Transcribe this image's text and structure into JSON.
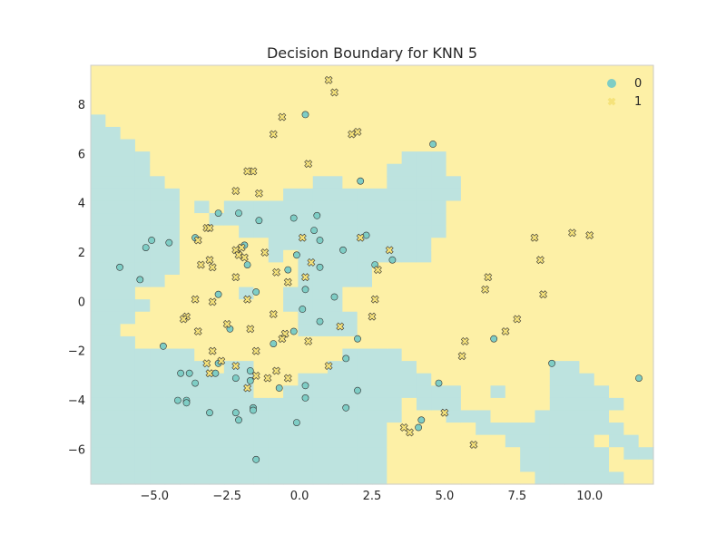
{
  "chart_data": {
    "type": "scatter",
    "title": "Decision Boundary for KNN 5",
    "xlabel": "",
    "ylabel": "",
    "xlim": [
      -7.2,
      12.2
    ],
    "ylim": [
      -7.4,
      9.6
    ],
    "xticks": [
      -5.0,
      -2.5,
      0.0,
      2.5,
      5.0,
      7.5,
      10.0
    ],
    "xtick_labels": [
      "−5.0",
      "−2.5",
      "0.0",
      "2.5",
      "5.0",
      "7.5",
      "10.0"
    ],
    "yticks": [
      -6,
      -4,
      -2,
      0,
      2,
      4,
      6,
      8
    ],
    "ytick_labels": [
      "−6",
      "−4",
      "−2",
      "0",
      "2",
      "4",
      "6",
      "8"
    ],
    "grid": false,
    "legend_position": "top-right",
    "colors": {
      "class0_region": "#bde3df",
      "class1_region": "#fdf0a6",
      "class0_marker": "#7ecdc5",
      "class1_marker": "#f5e27a",
      "marker_edge": "#333333"
    },
    "series": [
      {
        "name": "0",
        "marker": "circle",
        "points": [
          [
            0.2,
            7.6
          ],
          [
            4.6,
            6.4
          ],
          [
            2.1,
            4.9
          ],
          [
            -2.8,
            3.6
          ],
          [
            -2.1,
            3.6
          ],
          [
            -1.4,
            3.3
          ],
          [
            -0.2,
            3.4
          ],
          [
            0.6,
            3.5
          ],
          [
            0.5,
            2.9
          ],
          [
            -3.6,
            2.6
          ],
          [
            -5.1,
            2.5
          ],
          [
            -4.5,
            2.4
          ],
          [
            -5.3,
            2.2
          ],
          [
            -1.9,
            2.3
          ],
          [
            2.3,
            2.7
          ],
          [
            1.5,
            2.1
          ],
          [
            0.7,
            2.5
          ],
          [
            -6.2,
            1.4
          ],
          [
            -1.8,
            1.5
          ],
          [
            -0.4,
            1.3
          ],
          [
            0.7,
            1.4
          ],
          [
            -0.1,
            1.9
          ],
          [
            2.6,
            1.5
          ],
          [
            3.2,
            1.7
          ],
          [
            -5.5,
            0.9
          ],
          [
            -2.8,
            0.3
          ],
          [
            -1.5,
            0.4
          ],
          [
            0.2,
            0.5
          ],
          [
            1.2,
            0.2
          ],
          [
            0.1,
            -0.3
          ],
          [
            0.7,
            -0.8
          ],
          [
            -2.4,
            -1.1
          ],
          [
            -0.2,
            -1.2
          ],
          [
            -4.7,
            -1.8
          ],
          [
            -0.9,
            -1.7
          ],
          [
            2.0,
            -1.5
          ],
          [
            6.7,
            -1.5
          ],
          [
            1.6,
            -2.3
          ],
          [
            8.7,
            -2.5
          ],
          [
            11.7,
            -3.1
          ],
          [
            -4.1,
            -2.9
          ],
          [
            -3.6,
            -3.3
          ],
          [
            -3.8,
            -2.9
          ],
          [
            -2.9,
            -2.9
          ],
          [
            -2.8,
            -2.5
          ],
          [
            -2.2,
            -3.1
          ],
          [
            -1.7,
            -2.8
          ],
          [
            -1.7,
            -3.2
          ],
          [
            -0.7,
            -3.5
          ],
          [
            0.2,
            -3.4
          ],
          [
            2.0,
            -3.6
          ],
          [
            4.8,
            -3.3
          ],
          [
            -4.2,
            -4.0
          ],
          [
            -3.9,
            -4.0
          ],
          [
            -3.9,
            -4.1
          ],
          [
            -3.1,
            -4.5
          ],
          [
            -2.2,
            -4.5
          ],
          [
            -2.1,
            -4.8
          ],
          [
            -1.6,
            -4.3
          ],
          [
            -1.6,
            -4.4
          ],
          [
            0.2,
            -3.9
          ],
          [
            1.6,
            -4.3
          ],
          [
            4.2,
            -4.8
          ],
          [
            4.1,
            -5.1
          ],
          [
            -0.1,
            -4.9
          ],
          [
            -1.5,
            -6.4
          ]
        ]
      },
      {
        "name": "1",
        "marker": "x",
        "points": [
          [
            1.0,
            9.0
          ],
          [
            1.2,
            8.5
          ],
          [
            -0.6,
            7.5
          ],
          [
            -0.9,
            6.8
          ],
          [
            1.8,
            6.8
          ],
          [
            2.0,
            6.9
          ],
          [
            0.3,
            5.6
          ],
          [
            -1.6,
            5.3
          ],
          [
            -1.8,
            5.3
          ],
          [
            -2.2,
            4.5
          ],
          [
            -1.4,
            4.4
          ],
          [
            -3.2,
            3.0
          ],
          [
            -3.1,
            3.0
          ],
          [
            -3.5,
            2.5
          ],
          [
            -2.2,
            2.1
          ],
          [
            -2.0,
            2.2
          ],
          [
            -2.1,
            1.9
          ],
          [
            -1.9,
            1.8
          ],
          [
            -1.2,
            2.0
          ],
          [
            0.1,
            2.6
          ],
          [
            2.1,
            2.6
          ],
          [
            3.1,
            2.1
          ],
          [
            -3.4,
            1.5
          ],
          [
            -3.1,
            1.7
          ],
          [
            -3.0,
            1.4
          ],
          [
            -0.8,
            1.2
          ],
          [
            0.4,
            1.6
          ],
          [
            0.2,
            1.0
          ],
          [
            2.7,
            1.3
          ],
          [
            -2.2,
            1.0
          ],
          [
            -0.4,
            0.8
          ],
          [
            8.3,
            1.7
          ],
          [
            8.1,
            2.6
          ],
          [
            9.4,
            2.8
          ],
          [
            10.0,
            2.7
          ],
          [
            6.5,
            1.0
          ],
          [
            6.4,
            0.5
          ],
          [
            8.4,
            0.3
          ],
          [
            -3.6,
            0.1
          ],
          [
            -3.0,
            0.0
          ],
          [
            -1.8,
            0.1
          ],
          [
            2.6,
            0.1
          ],
          [
            -3.9,
            -0.6
          ],
          [
            -4.0,
            -0.7
          ],
          [
            -0.9,
            -0.5
          ],
          [
            2.5,
            -0.6
          ],
          [
            -2.5,
            -0.9
          ],
          [
            7.5,
            -0.7
          ],
          [
            -3.5,
            -1.2
          ],
          [
            -1.7,
            -1.1
          ],
          [
            -0.5,
            -1.3
          ],
          [
            -0.6,
            -1.5
          ],
          [
            1.4,
            -1.0
          ],
          [
            7.1,
            -1.2
          ],
          [
            -3.0,
            -2.0
          ],
          [
            -1.5,
            -2.0
          ],
          [
            0.3,
            -1.6
          ],
          [
            5.7,
            -1.6
          ],
          [
            5.6,
            -2.2
          ],
          [
            -3.2,
            -2.5
          ],
          [
            -2.7,
            -2.4
          ],
          [
            -2.2,
            -2.6
          ],
          [
            1.0,
            -2.6
          ],
          [
            -3.1,
            -2.9
          ],
          [
            -0.8,
            -2.8
          ],
          [
            -1.5,
            -3.0
          ],
          [
            -1.1,
            -3.1
          ],
          [
            -0.4,
            -3.1
          ],
          [
            -1.8,
            -3.5
          ],
          [
            5.0,
            -4.5
          ],
          [
            3.6,
            -5.1
          ],
          [
            3.8,
            -5.3
          ],
          [
            6.0,
            -5.8
          ]
        ]
      }
    ]
  }
}
